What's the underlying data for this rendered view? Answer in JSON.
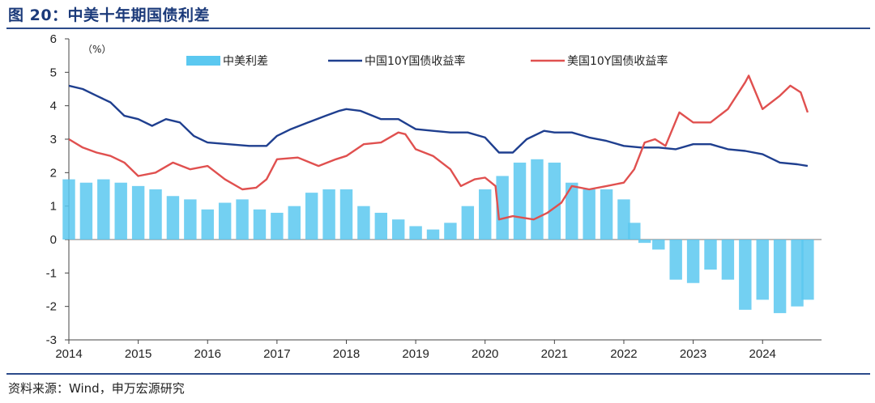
{
  "figure": {
    "title": "图 20：中美十年期国债利差",
    "source": "资料来源：Wind，申万宏源研究",
    "unit": "（%）"
  },
  "colors": {
    "spread": "#5bc8f0",
    "china": "#1f3f8f",
    "us": "#e0504f",
    "frame": "#2c4b8a"
  },
  "chart_data": {
    "type": "line",
    "xlabel": "",
    "ylabel": "",
    "ylim": [
      -3,
      6
    ],
    "yticks": [
      "-3",
      "-2",
      "-1",
      "0",
      "1",
      "2",
      "3",
      "4",
      "5",
      "6"
    ],
    "xticks": [
      "2014",
      "2015",
      "2016",
      "2017",
      "2018",
      "2019",
      "2020",
      "2021",
      "2022",
      "2023",
      "2024"
    ],
    "xlim": [
      2014.0,
      2024.85
    ],
    "legend": "top",
    "series": [
      {
        "name": "中美利差",
        "kind": "bar",
        "x": [
          2014.0,
          2014.25,
          2014.5,
          2014.75,
          2015.0,
          2015.25,
          2015.5,
          2015.75,
          2016.0,
          2016.25,
          2016.5,
          2016.75,
          2017.0,
          2017.25,
          2017.5,
          2017.75,
          2018.0,
          2018.25,
          2018.5,
          2018.75,
          2019.0,
          2019.25,
          2019.5,
          2019.75,
          2020.0,
          2020.25,
          2020.5,
          2020.75,
          2021.0,
          2021.25,
          2021.5,
          2021.75,
          2022.0,
          2022.15,
          2022.3,
          2022.5,
          2022.75,
          2023.0,
          2023.25,
          2023.5,
          2023.75,
          2024.0,
          2024.25,
          2024.5,
          2024.65
        ],
        "values": [
          1.8,
          1.7,
          1.8,
          1.7,
          1.6,
          1.5,
          1.3,
          1.2,
          0.9,
          1.1,
          1.2,
          0.9,
          0.8,
          1.0,
          1.4,
          1.5,
          1.5,
          1.0,
          0.8,
          0.6,
          0.4,
          0.3,
          0.5,
          1.0,
          1.5,
          1.9,
          2.3,
          2.4,
          2.3,
          1.7,
          1.5,
          1.5,
          1.2,
          0.5,
          -0.1,
          -0.3,
          -1.2,
          -1.3,
          -0.9,
          -1.2,
          -2.1,
          -1.8,
          -2.2,
          -2.0,
          -1.8
        ]
      },
      {
        "name": "中国10Y国债收益率",
        "kind": "line",
        "x": [
          2014.0,
          2014.2,
          2014.4,
          2014.6,
          2014.8,
          2015.0,
          2015.2,
          2015.4,
          2015.6,
          2015.8,
          2016.0,
          2016.3,
          2016.6,
          2016.85,
          2017.0,
          2017.2,
          2017.45,
          2017.7,
          2017.9,
          2018.0,
          2018.2,
          2018.5,
          2018.75,
          2019.0,
          2019.25,
          2019.5,
          2019.75,
          2020.0,
          2020.2,
          2020.4,
          2020.6,
          2020.85,
          2021.0,
          2021.25,
          2021.5,
          2021.75,
          2022.0,
          2022.25,
          2022.5,
          2022.75,
          2023.0,
          2023.25,
          2023.5,
          2023.75,
          2024.0,
          2024.25,
          2024.5,
          2024.65
        ],
        "values": [
          4.6,
          4.5,
          4.3,
          4.1,
          3.7,
          3.6,
          3.4,
          3.6,
          3.5,
          3.1,
          2.9,
          2.85,
          2.8,
          2.8,
          3.1,
          3.3,
          3.5,
          3.7,
          3.85,
          3.9,
          3.85,
          3.6,
          3.6,
          3.3,
          3.25,
          3.2,
          3.2,
          3.05,
          2.6,
          2.6,
          3.0,
          3.25,
          3.2,
          3.2,
          3.05,
          2.95,
          2.8,
          2.75,
          2.75,
          2.7,
          2.85,
          2.85,
          2.7,
          2.65,
          2.55,
          2.3,
          2.25,
          2.2
        ]
      },
      {
        "name": "美国10Y国债收益率",
        "kind": "line",
        "x": [
          2014.0,
          2014.2,
          2014.4,
          2014.6,
          2014.8,
          2015.0,
          2015.25,
          2015.5,
          2015.75,
          2016.0,
          2016.25,
          2016.5,
          2016.7,
          2016.85,
          2017.0,
          2017.3,
          2017.6,
          2017.85,
          2018.0,
          2018.25,
          2018.5,
          2018.75,
          2018.85,
          2019.0,
          2019.25,
          2019.5,
          2019.65,
          2019.85,
          2020.0,
          2020.15,
          2020.2,
          2020.4,
          2020.7,
          2020.9,
          2021.1,
          2021.25,
          2021.5,
          2021.75,
          2022.0,
          2022.15,
          2022.3,
          2022.45,
          2022.6,
          2022.8,
          2023.0,
          2023.25,
          2023.5,
          2023.75,
          2023.8,
          2024.0,
          2024.25,
          2024.4,
          2024.55,
          2024.65
        ],
        "values": [
          3.0,
          2.75,
          2.6,
          2.5,
          2.3,
          1.9,
          2.0,
          2.3,
          2.1,
          2.2,
          1.8,
          1.5,
          1.55,
          1.8,
          2.4,
          2.45,
          2.2,
          2.4,
          2.5,
          2.85,
          2.9,
          3.2,
          3.15,
          2.7,
          2.5,
          2.1,
          1.6,
          1.8,
          1.85,
          1.6,
          0.6,
          0.7,
          0.6,
          0.8,
          1.1,
          1.6,
          1.5,
          1.6,
          1.7,
          2.1,
          2.9,
          3.0,
          2.8,
          3.8,
          3.5,
          3.5,
          3.9,
          4.7,
          4.9,
          3.9,
          4.3,
          4.6,
          4.4,
          3.8
        ]
      }
    ]
  }
}
